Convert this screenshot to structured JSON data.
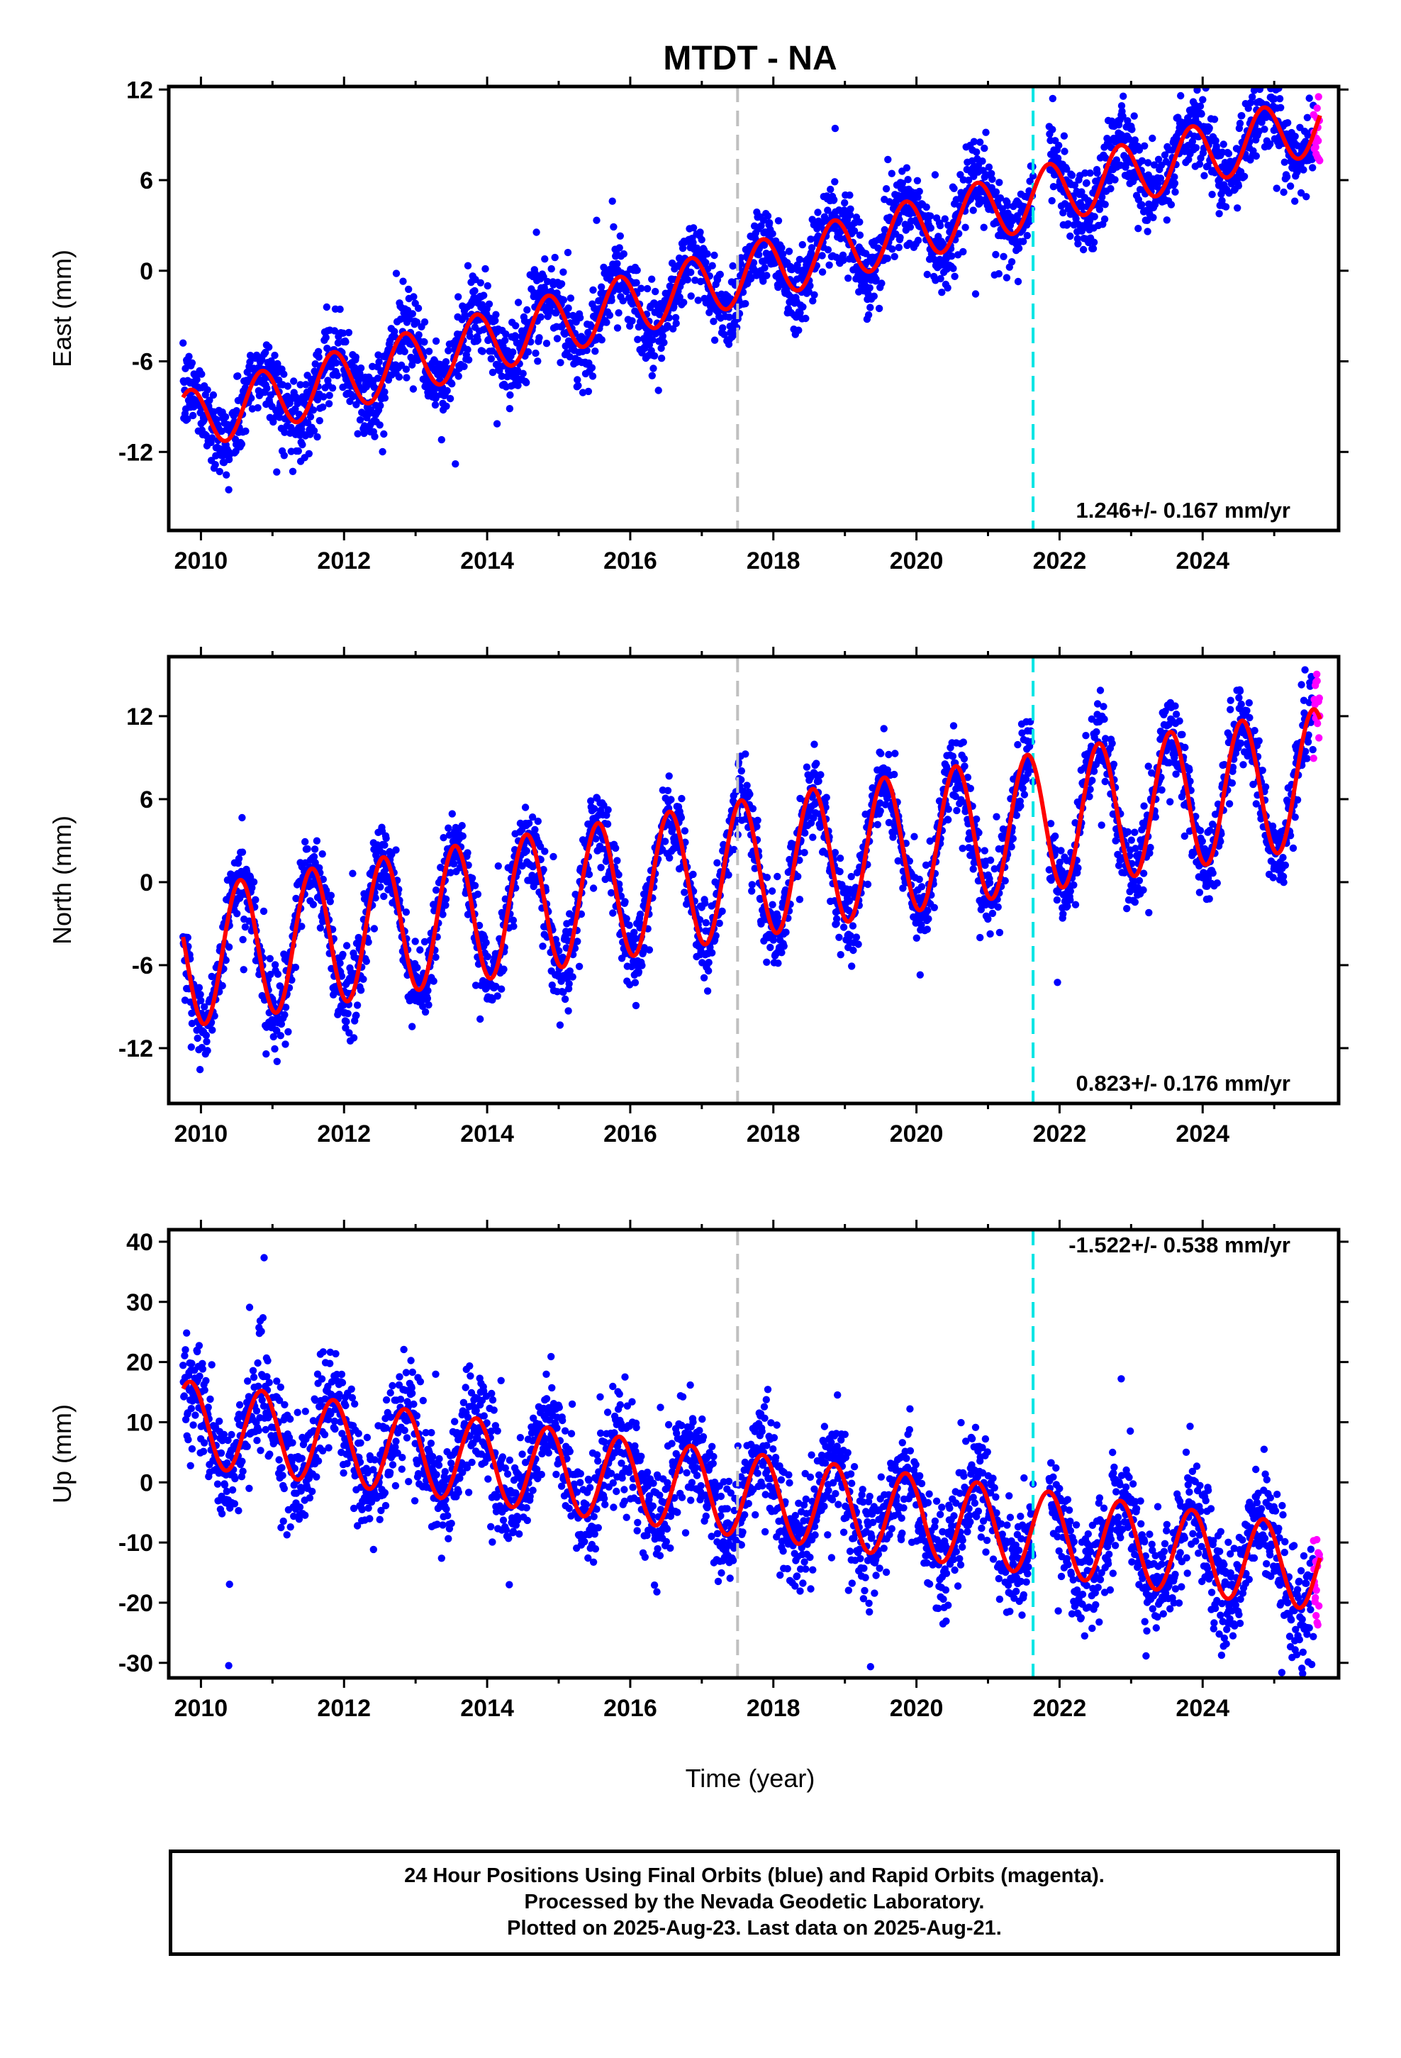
{
  "title": "MTDT - NA",
  "x_axis_label": "Time (year)",
  "caption": {
    "line1": "24 Hour Positions Using Final Orbits (blue) and Rapid Orbits (magenta).",
    "line2": "Processed by the Nevada Geodetic Laboratory.",
    "line3": "Plotted on 2025-Aug-23. Last data on 2025-Aug-21."
  },
  "colors": {
    "final_orbit_points": "#0000ff",
    "rapid_orbit_points": "#ff00ff",
    "model_fit": "#ff0000",
    "event_line_gray": "#c0c0c0",
    "event_line_cyan": "#00e5e5"
  },
  "chart_data": [
    {
      "type": "scatter",
      "ylabel": "East (mm)",
      "xlim": [
        2009.55,
        2025.9
      ],
      "ylim": [
        -17.2,
        12.2
      ],
      "x_ticks": [
        2010,
        2012,
        2014,
        2016,
        2018,
        2020,
        2022,
        2024
      ],
      "y_ticks": [
        -12,
        -6,
        0,
        6,
        12
      ],
      "rate_annotation": "1.246+/- 0.167 mm/yr",
      "rate_position": "bottom-right",
      "event_lines": [
        {
          "x": 2017.5,
          "color": "gray"
        },
        {
          "x": 2021.63,
          "color": "cyan"
        }
      ],
      "data_gap": [
        2021.63,
        2021.85
      ],
      "model": {
        "trend_mm_per_yr": 1.246,
        "offset_at_2010_mm": -9.7,
        "annual_amplitude_mm": 2.0,
        "annual_peak_phase_yr": 0.85
      },
      "scatter_noise_mm": 1.3,
      "series": [
        {
          "name": "Final Orbits",
          "color": "blue",
          "x_range": [
            2009.75,
            2025.55
          ]
        },
        {
          "name": "Rapid Orbits",
          "color": "magenta",
          "x_range": [
            2025.55,
            2025.64
          ]
        }
      ]
    },
    {
      "type": "scatter",
      "ylabel": "North (mm)",
      "xlim": [
        2009.55,
        2025.9
      ],
      "ylim": [
        -16,
        16.3
      ],
      "x_ticks": [
        2010,
        2012,
        2014,
        2016,
        2018,
        2020,
        2022,
        2024
      ],
      "y_ticks": [
        -12,
        -6,
        0,
        6,
        12
      ],
      "rate_annotation": "0.823+/- 0.176 mm/yr",
      "rate_position": "bottom-right",
      "event_lines": [
        {
          "x": 2017.5,
          "color": "gray"
        },
        {
          "x": 2021.63,
          "color": "cyan"
        }
      ],
      "data_gap": [
        2021.63,
        2021.85
      ],
      "model": {
        "trend_mm_per_yr": 0.823,
        "offset_at_2010_mm": -5.3,
        "annual_amplitude_mm": 5.0,
        "annual_peak_phase_yr": 0.55
      },
      "scatter_noise_mm": 1.4,
      "series": [
        {
          "name": "Final Orbits",
          "color": "blue",
          "x_range": [
            2009.75,
            2025.55
          ]
        },
        {
          "name": "Rapid Orbits",
          "color": "magenta",
          "x_range": [
            2025.55,
            2025.64
          ]
        }
      ]
    },
    {
      "type": "scatter",
      "ylabel": "Up (mm)",
      "xlim": [
        2009.55,
        2025.9
      ],
      "ylim": [
        -32.5,
        42
      ],
      "x_ticks": [
        2010,
        2012,
        2014,
        2016,
        2018,
        2020,
        2022,
        2024
      ],
      "y_ticks": [
        -30,
        -20,
        -10,
        0,
        10,
        20,
        30,
        40
      ],
      "rate_annotation": "-1.522+/- 0.538 mm/yr",
      "rate_position": "top-right",
      "event_lines": [
        {
          "x": 2017.5,
          "color": "gray"
        },
        {
          "x": 2021.63,
          "color": "cyan"
        }
      ],
      "data_gap": [
        2021.63,
        2021.85
      ],
      "model": {
        "trend_mm_per_yr": -1.522,
        "offset_at_2010_mm": 9.5,
        "annual_amplitude_mm": 7.0,
        "annual_peak_phase_yr": 0.85
      },
      "scatter_noise_mm": 4.5,
      "series": [
        {
          "name": "Final Orbits",
          "color": "blue",
          "x_range": [
            2009.75,
            2025.55
          ]
        },
        {
          "name": "Rapid Orbits",
          "color": "magenta",
          "x_range": [
            2025.55,
            2025.64
          ]
        }
      ]
    }
  ]
}
